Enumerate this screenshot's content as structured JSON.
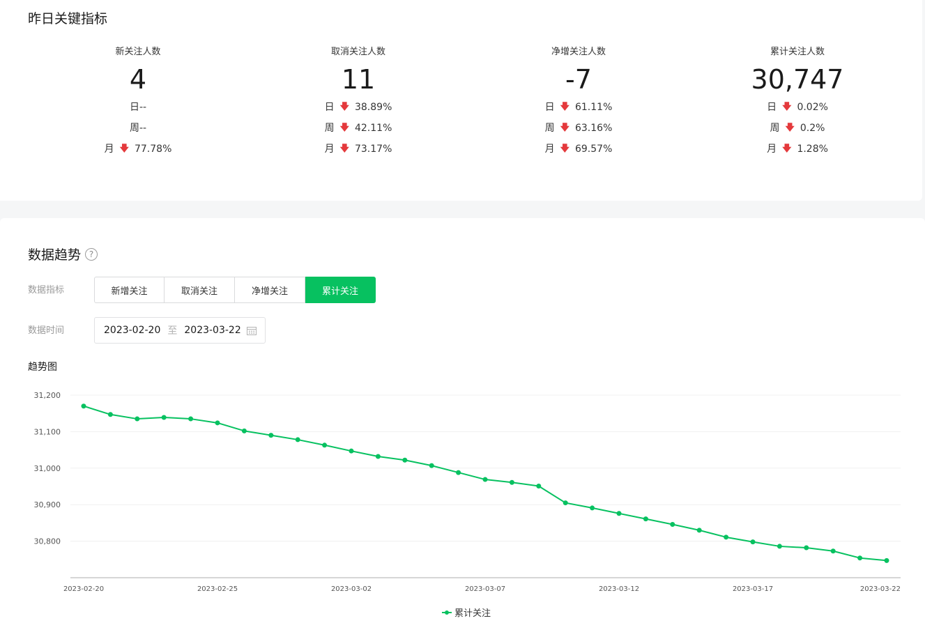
{
  "kpi_section": {
    "title": "昨日关键指标",
    "metrics": [
      {
        "label": "新关注人数",
        "value": "4",
        "rows": [
          {
            "period": "日",
            "arrow": "",
            "change": "--"
          },
          {
            "period": "周",
            "arrow": "",
            "change": "--"
          },
          {
            "period": "月",
            "arrow": "🡇",
            "change": "77.78%"
          }
        ]
      },
      {
        "label": "取消关注人数",
        "value": "11",
        "rows": [
          {
            "period": "日",
            "arrow": "🡇",
            "change": "38.89%"
          },
          {
            "period": "周",
            "arrow": "🡇",
            "change": "42.11%"
          },
          {
            "period": "月",
            "arrow": "🡇",
            "change": "73.17%"
          }
        ]
      },
      {
        "label": "净增关注人数",
        "value": "-7",
        "rows": [
          {
            "period": "日",
            "arrow": "🡇",
            "change": "61.11%"
          },
          {
            "period": "周",
            "arrow": "🡇",
            "change": "63.16%"
          },
          {
            "period": "月",
            "arrow": "🡇",
            "change": "69.57%"
          }
        ]
      },
      {
        "label": "累计关注人数",
        "value": "30,747",
        "rows": [
          {
            "period": "日",
            "arrow": "🡇",
            "change": "0.02%"
          },
          {
            "period": "周",
            "arrow": "🡇",
            "change": "0.2%"
          },
          {
            "period": "月",
            "arrow": "🡇",
            "change": "1.28%"
          }
        ]
      }
    ],
    "down_arrow_color": "#e4393c"
  },
  "trend_section": {
    "title": "数据趋势",
    "help_icon": "question-circle-icon",
    "metric_label": "数据指标",
    "metric_tabs": [
      "新增关注",
      "取消关注",
      "净增关注",
      "累计关注"
    ],
    "active_tab": "累计关注",
    "time_label": "数据时间",
    "date_start": "2023-02-20",
    "date_sep": "至",
    "date_end": "2023-03-22",
    "calendar_icon": "calendar-icon",
    "chart_title": "趋势图",
    "accent_color": "#07c160"
  },
  "chart_data": {
    "type": "line",
    "title": "趋势图",
    "xlabel": "",
    "ylabel": "",
    "ylim": [
      30700,
      31200
    ],
    "yticks": [
      30800,
      30900,
      31000,
      31100,
      31200
    ],
    "ytick_labels": [
      "30,800",
      "30,900",
      "31,000",
      "31,100",
      "31,200"
    ],
    "xtick_labels": [
      "2023-02-20",
      "2023-02-25",
      "2023-03-02",
      "2023-03-07",
      "2023-03-12",
      "2023-03-17",
      "2023-03-22"
    ],
    "x": [
      "2023-02-20",
      "2023-02-21",
      "2023-02-22",
      "2023-02-23",
      "2023-02-24",
      "2023-02-25",
      "2023-02-26",
      "2023-02-27",
      "2023-02-28",
      "2023-03-01",
      "2023-03-02",
      "2023-03-03",
      "2023-03-04",
      "2023-03-05",
      "2023-03-06",
      "2023-03-07",
      "2023-03-08",
      "2023-03-09",
      "2023-03-10",
      "2023-03-11",
      "2023-03-12",
      "2023-03-13",
      "2023-03-14",
      "2023-03-15",
      "2023-03-16",
      "2023-03-17",
      "2023-03-18",
      "2023-03-19",
      "2023-03-20",
      "2023-03-21",
      "2023-03-22"
    ],
    "series": [
      {
        "name": "累计关注",
        "color": "#07c160",
        "values": [
          31170,
          31147,
          31135,
          31139,
          31135,
          31124,
          31102,
          31090,
          31078,
          31063,
          31047,
          31032,
          31022,
          31007,
          30988,
          30969,
          30961,
          30951,
          30905,
          30891,
          30876,
          30861,
          30846,
          30830,
          30811,
          30798,
          30786,
          30782,
          30773,
          30754,
          30747
        ]
      }
    ],
    "grid": true,
    "legend": "bottom-center"
  }
}
